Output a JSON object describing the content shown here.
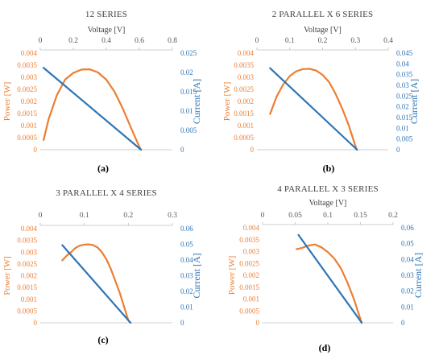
{
  "colors": {
    "power": "#ED7D31",
    "current": "#2E75B6",
    "axis": "#BFBFBF",
    "text": "#404040"
  },
  "chart_data": [
    {
      "type": "line",
      "panel": "a",
      "caption": "(a)",
      "title": "12 SERIES",
      "xlabel": "Voltage [V]",
      "y1label": "Power [W]",
      "y2label": "Current [A]",
      "xlim": [
        0,
        0.8
      ],
      "xticks": [
        "0",
        "0.2",
        "0.4",
        "0.6",
        "0.8"
      ],
      "y1lim": [
        0,
        0.004
      ],
      "y1ticks": [
        "0",
        "0.0005",
        "0.001",
        "0.0015",
        "0.002",
        "0.0025",
        "0.003",
        "0.0035",
        "0.004"
      ],
      "y2lim": [
        0,
        0.025
      ],
      "y2ticks": [
        "0",
        "0.005",
        "0.01",
        "0.015",
        "0.02",
        "0.025"
      ],
      "series": [
        {
          "axis": "y1",
          "x": [
            0.02,
            0.05,
            0.1,
            0.15,
            0.2,
            0.25,
            0.3,
            0.35,
            0.4,
            0.45,
            0.5,
            0.55,
            0.6,
            0.61
          ],
          "y": [
            0.0004,
            0.00125,
            0.00225,
            0.0029,
            0.00318,
            0.00332,
            0.00333,
            0.0032,
            0.0029,
            0.0024,
            0.0017,
            0.0009,
            0.00012,
            0.0
          ]
        },
        {
          "axis": "y2",
          "x": [
            0.02,
            0.61
          ],
          "y": [
            0.0212,
            0.0
          ]
        }
      ]
    },
    {
      "type": "line",
      "panel": "b",
      "caption": "(b)",
      "title": "2 PARALLEL X 6 SERIES",
      "xlabel": "Voltage [V]",
      "y1label": "Power [W]",
      "y2label": "Current [A]",
      "xlim": [
        0,
        0.4
      ],
      "xticks": [
        "0",
        "0.1",
        "0.2",
        "0.3",
        "0.4"
      ],
      "y1lim": [
        0,
        0.004
      ],
      "y1ticks": [
        "0",
        "0.0005",
        "0.001",
        "0.0015",
        "0.002",
        "0.0025",
        "0.003",
        "0.0035",
        "0.004"
      ],
      "y2lim": [
        0,
        0.045
      ],
      "y2ticks": [
        "0",
        "0.005",
        "0.01",
        "0.015",
        "0.02",
        "0.025",
        "0.03",
        "0.035",
        "0.04",
        "0.045"
      ],
      "series": [
        {
          "axis": "y1",
          "x": [
            0.04,
            0.06,
            0.08,
            0.1,
            0.12,
            0.14,
            0.16,
            0.18,
            0.2,
            0.22,
            0.24,
            0.26,
            0.28,
            0.3,
            0.305
          ],
          "y": [
            0.00148,
            0.0022,
            0.0027,
            0.00305,
            0.00325,
            0.00334,
            0.00335,
            0.00328,
            0.0031,
            0.0028,
            0.0023,
            0.0017,
            0.001,
            0.00015,
            0.0
          ]
        },
        {
          "axis": "y2",
          "x": [
            0.04,
            0.305
          ],
          "y": [
            0.038,
            0.0
          ]
        }
      ]
    },
    {
      "type": "line",
      "panel": "c",
      "caption": "(c)",
      "title": "3 PARALLEL X 4 SERIES",
      "xlabel": "",
      "y1label": "Power [W]",
      "y2label": "Current [A]",
      "xlim": [
        0,
        0.3
      ],
      "xticks": [
        "0",
        "0.1",
        "0.2",
        "0.3"
      ],
      "y1lim": [
        0,
        0.004
      ],
      "y1ticks": [
        "0",
        "0.0005",
        "0.001",
        "0.0015",
        "0.002",
        "0.0025",
        "0.003",
        "0.0035",
        "0.004"
      ],
      "y2lim": [
        0,
        0.06
      ],
      "y2ticks": [
        "0",
        "0.01",
        "0.02",
        "0.03",
        "0.04",
        "0.05",
        "0.06"
      ],
      "series": [
        {
          "axis": "y1",
          "x": [
            0.05,
            0.06,
            0.07,
            0.08,
            0.09,
            0.1,
            0.11,
            0.12,
            0.13,
            0.14,
            0.15,
            0.16,
            0.17,
            0.18,
            0.19,
            0.2,
            0.205
          ],
          "y": [
            0.00265,
            0.00285,
            0.003,
            0.00318,
            0.00328,
            0.00332,
            0.00333,
            0.0033,
            0.0032,
            0.003,
            0.0027,
            0.0023,
            0.0018,
            0.0013,
            0.0007,
            0.0001,
            0.0
          ]
        },
        {
          "axis": "y2",
          "x": [
            0.05,
            0.205
          ],
          "y": [
            0.0495,
            0.0
          ]
        }
      ]
    },
    {
      "type": "line",
      "panel": "d",
      "caption": "(d)",
      "title": "4 PARALLEL X 3 SERIES",
      "xlabel": "Voltage [V]",
      "y1label": "Power [W]",
      "y2label": "Current [A]",
      "xlim": [
        0,
        0.2
      ],
      "xticks": [
        "0",
        "0.05",
        "0.1",
        "0.15",
        "0.2"
      ],
      "y1lim": [
        0,
        0.004
      ],
      "y1ticks": [
        "0",
        "0.0005",
        "0.001",
        "0.0015",
        "0.002",
        "0.0025",
        "0.003",
        "0.0035",
        "0.004"
      ],
      "y2lim": [
        0,
        0.06
      ],
      "y2ticks": [
        "0",
        "0.01",
        "0.02",
        "0.03",
        "0.04",
        "0.05",
        "0.06"
      ],
      "series": [
        {
          "axis": "y1",
          "x": [
            0.052,
            0.06,
            0.07,
            0.08,
            0.09,
            0.1,
            0.11,
            0.12,
            0.13,
            0.14,
            0.15,
            0.152
          ],
          "y": [
            0.0031,
            0.00315,
            0.00325,
            0.0033,
            0.00318,
            0.00298,
            0.0027,
            0.0023,
            0.0017,
            0.001,
            0.00015,
            0.0
          ]
        },
        {
          "axis": "y2",
          "x": [
            0.055,
            0.152
          ],
          "y": [
            0.0555,
            0.0
          ]
        }
      ]
    }
  ]
}
